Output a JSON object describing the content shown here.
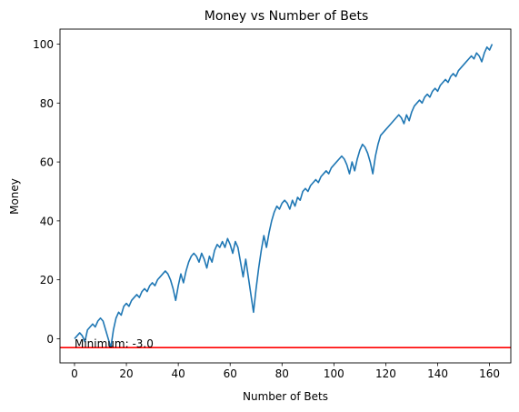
{
  "chart_data": {
    "type": "line",
    "title": "Money vs Number of Bets",
    "xlabel": "Number of Bets",
    "ylabel": "Money",
    "xlim": [
      -5.6,
      168.2
    ],
    "ylim": [
      -8.2,
      105.1
    ],
    "xticks": [
      0,
      20,
      40,
      60,
      80,
      100,
      120,
      140,
      160
    ],
    "yticks": [
      0,
      20,
      40,
      60,
      80,
      100
    ],
    "grid": false,
    "series": [
      {
        "color": "#1f77b4",
        "x": [
          0,
          1,
          2,
          3,
          4,
          5,
          6,
          7,
          8,
          9,
          10,
          11,
          12,
          13,
          14,
          15,
          16,
          17,
          18,
          19,
          20,
          21,
          22,
          23,
          24,
          25,
          26,
          27,
          28,
          29,
          30,
          31,
          32,
          33,
          34,
          35,
          36,
          37,
          38,
          39,
          40,
          41,
          42,
          43,
          44,
          45,
          46,
          47,
          48,
          49,
          50,
          51,
          52,
          53,
          54,
          55,
          56,
          57,
          58,
          59,
          60,
          61,
          62,
          63,
          64,
          65,
          66,
          67,
          68,
          69,
          70,
          71,
          72,
          73,
          74,
          75,
          76,
          77,
          78,
          79,
          80,
          81,
          82,
          83,
          84,
          85,
          86,
          87,
          88,
          89,
          90,
          91,
          92,
          93,
          94,
          95,
          96,
          97,
          98,
          99,
          100,
          101,
          102,
          103,
          104,
          105,
          106,
          107,
          108,
          109,
          110,
          111,
          112,
          113,
          114,
          115,
          116,
          117,
          118,
          119,
          120,
          121,
          122,
          123,
          124,
          125,
          126,
          127,
          128,
          129,
          130,
          131,
          132,
          133,
          134,
          135,
          136,
          137,
          138,
          139,
          140,
          141,
          142,
          143,
          144,
          145,
          146,
          147,
          148,
          149,
          150,
          151,
          152,
          153,
          154,
          155,
          156,
          157,
          158,
          159,
          160,
          161
        ],
        "y": [
          0,
          1,
          2,
          1,
          -1,
          3,
          4,
          5,
          4,
          6,
          7,
          6,
          3,
          0,
          -3,
          3,
          7,
          9,
          8,
          11,
          12,
          11,
          13,
          14,
          15,
          14,
          16,
          17,
          16,
          18,
          19,
          18,
          20,
          21,
          22,
          23,
          22,
          20,
          17,
          13,
          18,
          22,
          19,
          23,
          26,
          28,
          29,
          28,
          26,
          29,
          27,
          24,
          28,
          26,
          30,
          32,
          31,
          33,
          31,
          34,
          32,
          29,
          33,
          31,
          26,
          21,
          27,
          21,
          15,
          9,
          17,
          24,
          30,
          35,
          31,
          36,
          40,
          43,
          45,
          44,
          46,
          47,
          46,
          44,
          47,
          45,
          48,
          47,
          50,
          51,
          50,
          52,
          53,
          54,
          53,
          55,
          56,
          57,
          56,
          58,
          59,
          60,
          61,
          62,
          61,
          59,
          56,
          60,
          57,
          61,
          64,
          66,
          65,
          63,
          60,
          56,
          62,
          66,
          69,
          70,
          71,
          72,
          73,
          74,
          75,
          76,
          75,
          73,
          76,
          74,
          77,
          79,
          80,
          81,
          80,
          82,
          83,
          82,
          84,
          85,
          84,
          86,
          87,
          88,
          87,
          89,
          90,
          89,
          91,
          92,
          93,
          94,
          95,
          96,
          95,
          97,
          96,
          94,
          97,
          99,
          98,
          100
        ]
      }
    ],
    "hline": {
      "y": -3.0,
      "color": "#ff0000"
    },
    "annotation": {
      "text": "Minimum: -3.0",
      "x": 0,
      "y": -3.0
    }
  }
}
